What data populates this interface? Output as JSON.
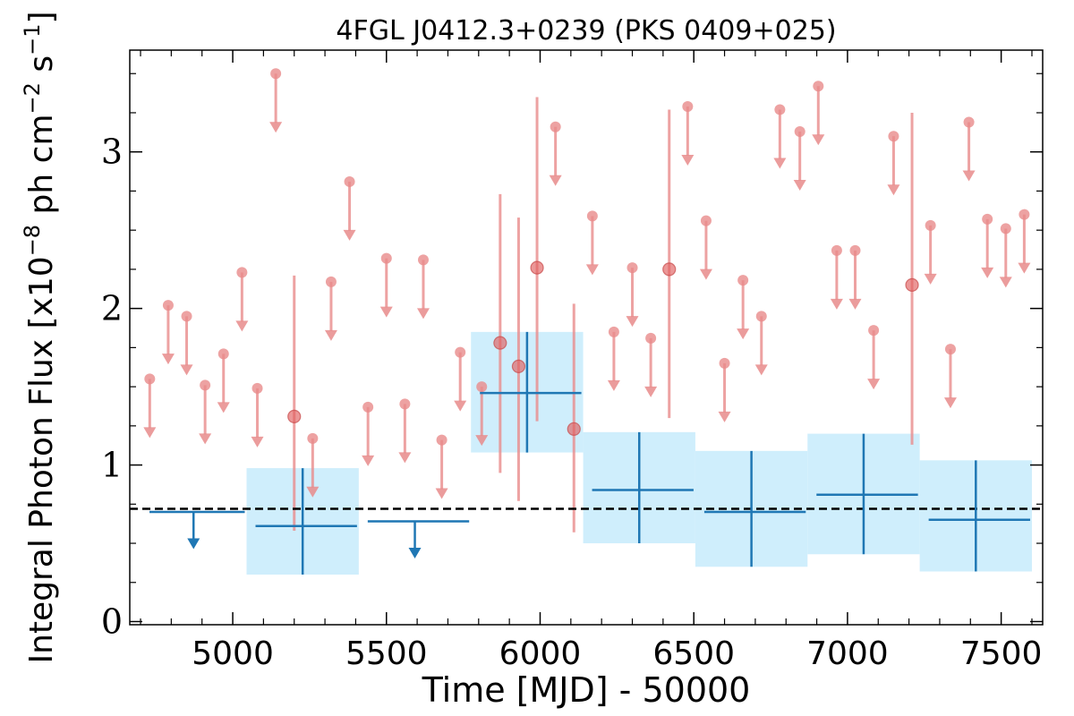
{
  "chart_data": {
    "type": "scatter",
    "title": "4FGL J0412.3+0239 (PKS 0409+025)",
    "xlabel": "Time [MJD] - 50000",
    "ylabel": "Integral Photon Flux [x10",
    "ylabel_sup1": "−8",
    "ylabel_mid": " ph cm",
    "ylabel_sup2": "−2",
    "ylabel_mid2": " s",
    "ylabel_sup3": "−1",
    "ylabel_end": "]",
    "xlim": [
      4665,
      7635
    ],
    "ylim": [
      -0.02,
      3.65
    ],
    "xticks": [
      5000,
      5500,
      6000,
      6500,
      7000,
      7500
    ],
    "yticks": [
      0,
      1,
      2,
      3
    ],
    "mean_flux": 0.72,
    "colors": {
      "upper_limit_fine": "#e88b8b",
      "detection_fine": "#e06060",
      "coarse": "#1f77b4",
      "coarse_band": "#cfeefc",
      "mean_line": "#000000"
    },
    "coarse_bins": [
      {
        "x_start": 4700,
        "x_end": 5045,
        "y": 0.7,
        "upper_limit": true
      },
      {
        "x_start": 5045,
        "x_end": 5410,
        "y": 0.61,
        "y_low": 0.3,
        "y_high": 0.98
      },
      {
        "x_start": 5410,
        "x_end": 5775,
        "y": 0.64,
        "upper_limit": true
      },
      {
        "x_start": 5775,
        "x_end": 6140,
        "y": 1.46,
        "y_low": 1.08,
        "y_high": 1.85
      },
      {
        "x_start": 6140,
        "x_end": 6505,
        "y": 0.84,
        "y_low": 0.5,
        "y_high": 1.21
      },
      {
        "x_start": 6505,
        "x_end": 6870,
        "y": 0.7,
        "y_low": 0.35,
        "y_high": 1.09
      },
      {
        "x_start": 6870,
        "x_end": 7235,
        "y": 0.81,
        "y_low": 0.43,
        "y_high": 1.2
      },
      {
        "x_start": 7235,
        "x_end": 7600,
        "y": 0.65,
        "y_low": 0.32,
        "y_high": 1.03
      }
    ],
    "fine_upper_limits": [
      {
        "x": 4730,
        "y": 1.55
      },
      {
        "x": 4790,
        "y": 2.02
      },
      {
        "x": 4850,
        "y": 1.95
      },
      {
        "x": 4910,
        "y": 1.51
      },
      {
        "x": 4970,
        "y": 1.71
      },
      {
        "x": 5030,
        "y": 2.23
      },
      {
        "x": 5080,
        "y": 1.49
      },
      {
        "x": 5140,
        "y": 3.5
      },
      {
        "x": 5260,
        "y": 1.17
      },
      {
        "x": 5320,
        "y": 2.17
      },
      {
        "x": 5380,
        "y": 2.81
      },
      {
        "x": 5440,
        "y": 1.37
      },
      {
        "x": 5500,
        "y": 2.32
      },
      {
        "x": 5560,
        "y": 1.39
      },
      {
        "x": 5620,
        "y": 2.31
      },
      {
        "x": 5680,
        "y": 1.16
      },
      {
        "x": 5740,
        "y": 1.72
      },
      {
        "x": 5810,
        "y": 1.5
      },
      {
        "x": 6050,
        "y": 3.16
      },
      {
        "x": 6170,
        "y": 2.59
      },
      {
        "x": 6240,
        "y": 1.85
      },
      {
        "x": 6300,
        "y": 2.26
      },
      {
        "x": 6360,
        "y": 1.81
      },
      {
        "x": 6480,
        "y": 3.29
      },
      {
        "x": 6540,
        "y": 2.56
      },
      {
        "x": 6600,
        "y": 1.65
      },
      {
        "x": 6660,
        "y": 2.18
      },
      {
        "x": 6720,
        "y": 1.95
      },
      {
        "x": 6780,
        "y": 3.27
      },
      {
        "x": 6845,
        "y": 3.13
      },
      {
        "x": 6905,
        "y": 3.42
      },
      {
        "x": 6965,
        "y": 2.37
      },
      {
        "x": 7025,
        "y": 2.37
      },
      {
        "x": 7085,
        "y": 1.86
      },
      {
        "x": 7150,
        "y": 3.1
      },
      {
        "x": 7270,
        "y": 2.53
      },
      {
        "x": 7335,
        "y": 1.74
      },
      {
        "x": 7395,
        "y": 3.19
      },
      {
        "x": 7455,
        "y": 2.57
      },
      {
        "x": 7515,
        "y": 2.51
      },
      {
        "x": 7575,
        "y": 2.6
      }
    ],
    "fine_detections": [
      {
        "x": 5200,
        "y": 1.31,
        "y_low": 0.58,
        "y_high": 2.21
      },
      {
        "x": 5870,
        "y": 1.78,
        "y_low": 0.95,
        "y_high": 2.73
      },
      {
        "x": 5930,
        "y": 1.63,
        "y_low": 0.77,
        "y_high": 2.58
      },
      {
        "x": 5990,
        "y": 2.26,
        "y_low": 1.28,
        "y_high": 3.35
      },
      {
        "x": 6110,
        "y": 1.23,
        "y_low": 0.57,
        "y_high": 2.03
      },
      {
        "x": 6420,
        "y": 2.25,
        "y_low": 1.3,
        "y_high": 3.27
      },
      {
        "x": 7210,
        "y": 2.15,
        "y_low": 1.13,
        "y_high": 3.25
      }
    ]
  }
}
